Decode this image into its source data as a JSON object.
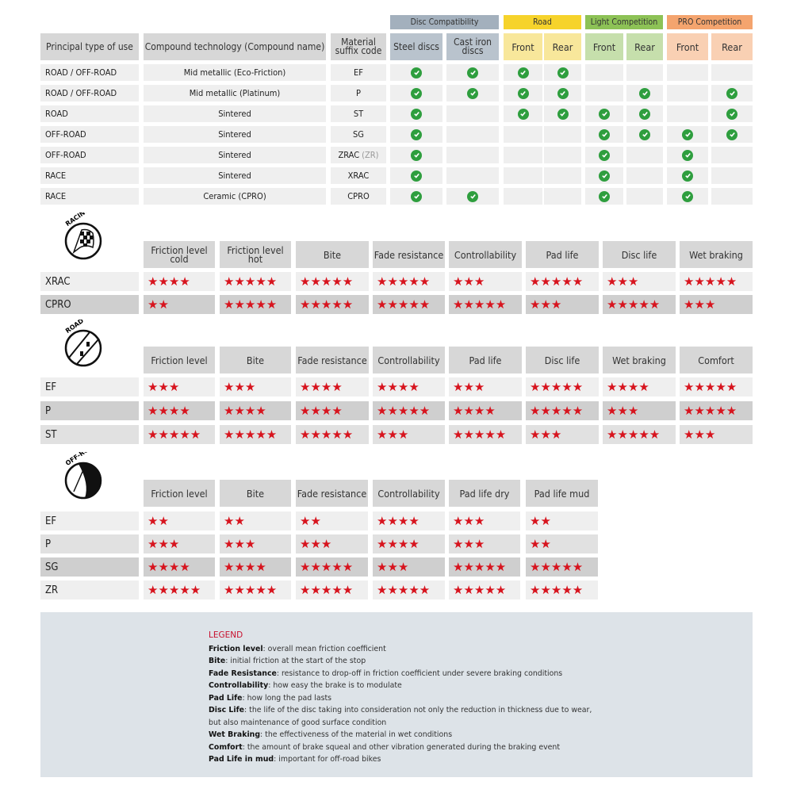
{
  "compatibility": {
    "groups": [
      {
        "label": "Disc Compatibility",
        "color": "#a3b0bd",
        "sub_color": "#b9c3cd"
      },
      {
        "label": "Road",
        "color": "#f6d32b",
        "sub_color": "#f8e79b"
      },
      {
        "label": "Light Competition",
        "color": "#8dc256",
        "sub_color": "#c6dfac"
      },
      {
        "label": "PRO Competition",
        "color": "#f4a46e",
        "sub_color": "#f9d0b3"
      }
    ],
    "headers": [
      "Principal type of use",
      "Compound technology (Compound name)",
      "Material suffix code",
      "Steel discs",
      "Cast iron discs",
      "Front",
      "Rear",
      "Front",
      "Rear",
      "Front",
      "Rear"
    ],
    "rows": [
      {
        "type": "ROAD / OFF-ROAD",
        "compound": "Mid metallic (Eco-Friction)",
        "code": "EF",
        "code_suffix": "",
        "checks": [
          1,
          1,
          1,
          1,
          0,
          0,
          0,
          0
        ]
      },
      {
        "type": "ROAD / OFF-ROAD",
        "compound": "Mid metallic (Platinum)",
        "code": "P",
        "code_suffix": "",
        "checks": [
          1,
          1,
          1,
          1,
          0,
          1,
          0,
          1
        ]
      },
      {
        "type": "ROAD",
        "compound": "Sintered",
        "code": "ST",
        "code_suffix": "",
        "checks": [
          1,
          0,
          1,
          1,
          1,
          1,
          0,
          1
        ]
      },
      {
        "type": "OFF-ROAD",
        "compound": "Sintered",
        "code": "SG",
        "code_suffix": "",
        "checks": [
          1,
          0,
          0,
          0,
          1,
          1,
          1,
          1
        ]
      },
      {
        "type": "OFF-ROAD",
        "compound": "Sintered",
        "code": "ZRAC",
        "code_suffix": "(ZR)",
        "checks": [
          1,
          0,
          0,
          0,
          1,
          0,
          1,
          0
        ]
      },
      {
        "type": "RACE",
        "compound": "Sintered",
        "code": "XRAC",
        "code_suffix": "",
        "checks": [
          1,
          0,
          0,
          0,
          1,
          0,
          1,
          0
        ]
      },
      {
        "type": "RACE",
        "compound": "Ceramic (CPRO)",
        "code": "CPRO",
        "code_suffix": "",
        "checks": [
          1,
          1,
          0,
          0,
          1,
          0,
          1,
          0
        ]
      }
    ],
    "check_icon": "check-circle-icon",
    "check_color": "#2e9e3e"
  },
  "ratings": [
    {
      "icon": "racing-flag-icon",
      "icon_label": "RACING",
      "headers": [
        "Friction level cold",
        "Friction level hot",
        "Bite",
        "Fade resistance",
        "Controllability",
        "Pad life",
        "Disc life",
        "Wet braking"
      ],
      "rows": [
        {
          "code": "XRAC",
          "shade": "l",
          "stars": [
            4,
            5,
            5,
            5,
            3,
            5,
            3,
            5
          ]
        },
        {
          "code": "CPRO",
          "shade": "d",
          "stars": [
            2,
            5,
            5,
            5,
            5,
            3,
            5,
            3
          ]
        }
      ]
    },
    {
      "icon": "road-icon",
      "icon_label": "ROAD",
      "headers": [
        "Friction level",
        "Bite",
        "Fade resistance",
        "Controllability",
        "Pad life",
        "Disc life",
        "Wet braking",
        "Comfort"
      ],
      "rows": [
        {
          "code": "EF",
          "shade": "l",
          "stars": [
            3,
            3,
            4,
            4,
            3,
            5,
            4,
            5
          ]
        },
        {
          "code": "P",
          "shade": "d",
          "stars": [
            4,
            4,
            4,
            5,
            4,
            5,
            3,
            5
          ]
        },
        {
          "code": "ST",
          "shade": "m",
          "stars": [
            5,
            5,
            5,
            3,
            5,
            3,
            5,
            3
          ]
        }
      ]
    },
    {
      "icon": "off-road-icon",
      "icon_label": "OFF-ROAD",
      "headers": [
        "Friction level",
        "Bite",
        "Fade resistance",
        "Controllability",
        "Pad life dry",
        "Pad life mud"
      ],
      "rows": [
        {
          "code": "EF",
          "shade": "l",
          "stars": [
            2,
            2,
            2,
            4,
            3,
            2
          ]
        },
        {
          "code": "P",
          "shade": "m",
          "stars": [
            3,
            3,
            3,
            4,
            3,
            2
          ]
        },
        {
          "code": "SG",
          "shade": "d",
          "stars": [
            4,
            4,
            5,
            3,
            5,
            5
          ]
        },
        {
          "code": "ZR",
          "shade": "l",
          "stars": [
            5,
            5,
            5,
            5,
            5,
            5
          ]
        }
      ]
    }
  ],
  "star_color": "#d7141e",
  "legend": {
    "title": "LEGEND",
    "items": [
      {
        "term": "Friction level",
        "def": ": overall mean friction coefficient"
      },
      {
        "term": "Bite",
        "def": ": initial friction at the start of the stop"
      },
      {
        "term": "Fade Resistance",
        "def": ": resistance to drop-off in friction coefficient under severe braking conditions"
      },
      {
        "term": "Controllability",
        "def": ": how easy the brake is to modulate"
      },
      {
        "term": "Pad Life",
        "def": ": how long the pad lasts"
      },
      {
        "term": "Disc Life",
        "def": ": the life of the disc taking into consideration not only the reduction in thickness due to wear,"
      },
      {
        "term": "",
        "def": "but also maintenance of good surface condition"
      },
      {
        "term": "Wet Braking",
        "def": ": the effectiveness of the material in wet conditions"
      },
      {
        "term": "Comfort",
        "def": ": the amount of brake squeal and other vibration generated during the braking event"
      },
      {
        "term": "Pad Life in mud",
        "def": ": important for off-road bikes"
      }
    ]
  }
}
